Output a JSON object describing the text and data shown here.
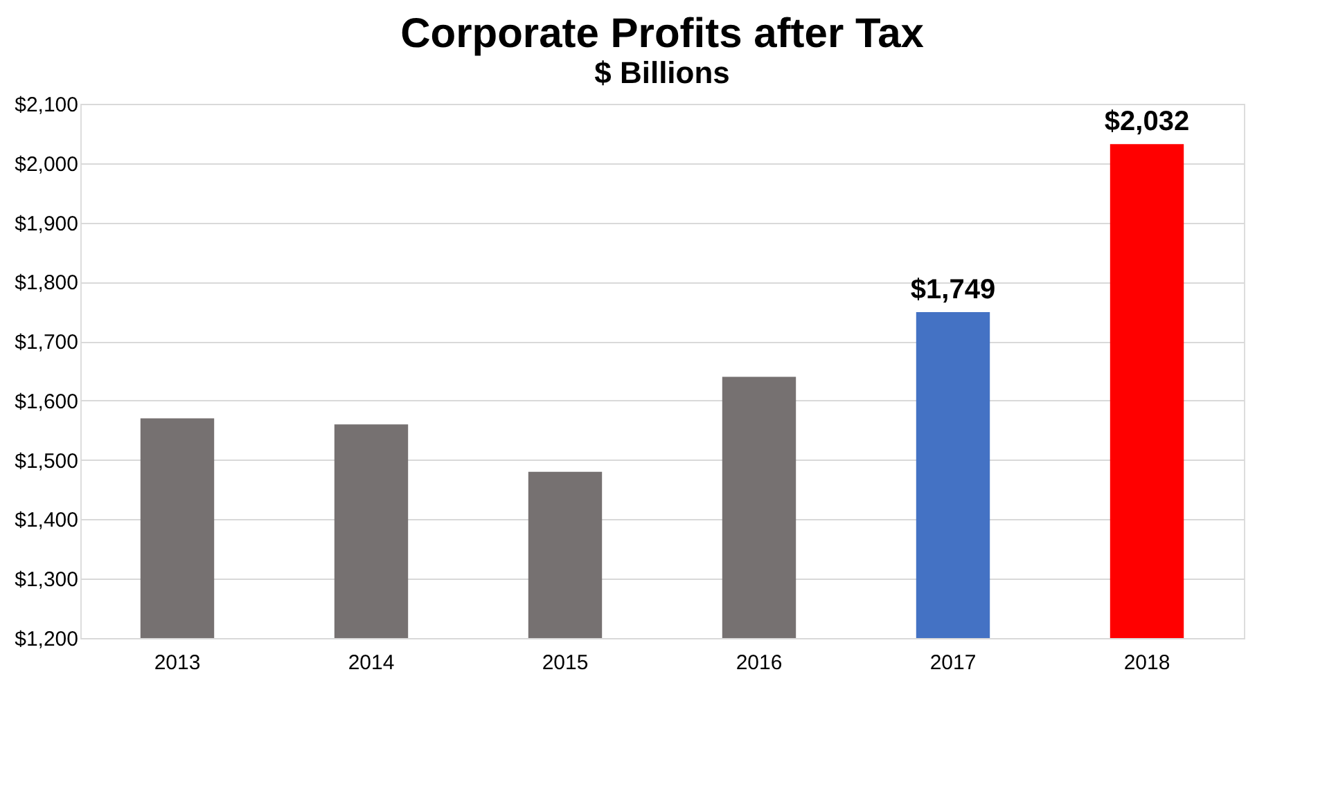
{
  "chart_data": {
    "type": "bar",
    "title": "Corporate Profits after Tax",
    "subtitle": "$ Billions",
    "categories": [
      "2013",
      "2014",
      "2015",
      "2016",
      "2017",
      "2018"
    ],
    "values": [
      1570,
      1560,
      1480,
      1640,
      1749,
      2032
    ],
    "colors": [
      "#767171",
      "#767171",
      "#767171",
      "#767171",
      "#4472c4",
      "#ff0000"
    ],
    "value_labels": [
      null,
      null,
      null,
      null,
      "$1,749",
      "$2,032"
    ],
    "ylim": [
      1200,
      2100
    ],
    "yticks": [
      {
        "value": 1200,
        "label": "$1,200"
      },
      {
        "value": 1300,
        "label": "$1,300"
      },
      {
        "value": 1400,
        "label": "$1,400"
      },
      {
        "value": 1500,
        "label": "$1,500"
      },
      {
        "value": 1600,
        "label": "$1,600"
      },
      {
        "value": 1700,
        "label": "$1,700"
      },
      {
        "value": 1800,
        "label": "$1,800"
      },
      {
        "value": 1900,
        "label": "$1,900"
      },
      {
        "value": 2000,
        "label": "$2,000"
      },
      {
        "value": 2100,
        "label": "$2,100"
      }
    ],
    "grid": "y"
  }
}
